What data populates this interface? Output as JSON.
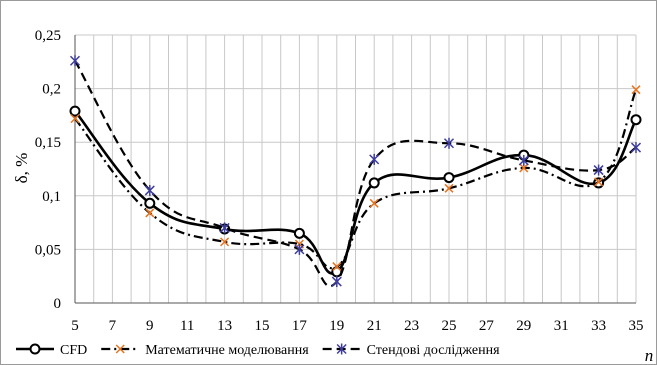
{
  "chart_data": {
    "type": "line",
    "title": "",
    "xlabel": "n",
    "ylabel": "δ, %",
    "x_ticks": [
      5,
      7,
      9,
      11,
      13,
      15,
      17,
      19,
      21,
      23,
      25,
      27,
      29,
      31,
      33,
      35
    ],
    "y_ticks": [
      "0",
      "0,05",
      "0,1",
      "0,15",
      "0,2",
      "0,25"
    ],
    "y_tick_values": [
      0,
      0.05,
      0.1,
      0.15,
      0.2,
      0.25
    ],
    "xlim": [
      5,
      35
    ],
    "ylim": [
      0,
      0.25
    ],
    "grid": "both",
    "legend_position": "bottom",
    "x": [
      5,
      9,
      13,
      17,
      19,
      21,
      25,
      29,
      33,
      35
    ],
    "series": [
      {
        "name": "CFD",
        "style": "solid",
        "marker": "circle",
        "color": "#000000",
        "values": [
          0.179,
          0.093,
          0.069,
          0.065,
          0.029,
          0.112,
          0.117,
          0.138,
          0.112,
          0.171
        ]
      },
      {
        "name": "Математичне моделювання",
        "style": "dashdot",
        "marker": "x",
        "color": "#000000",
        "marker_color": "#e8731c",
        "values": [
          0.172,
          0.084,
          0.057,
          0.055,
          0.034,
          0.093,
          0.107,
          0.126,
          0.113,
          0.199
        ]
      },
      {
        "name": "Стендові дослідження",
        "style": "dashed",
        "marker": "star",
        "color": "#000000",
        "marker_color": "#3d3d9c",
        "values": [
          0.226,
          0.105,
          0.07,
          0.05,
          0.02,
          0.134,
          0.149,
          0.133,
          0.124,
          0.145
        ]
      }
    ]
  }
}
